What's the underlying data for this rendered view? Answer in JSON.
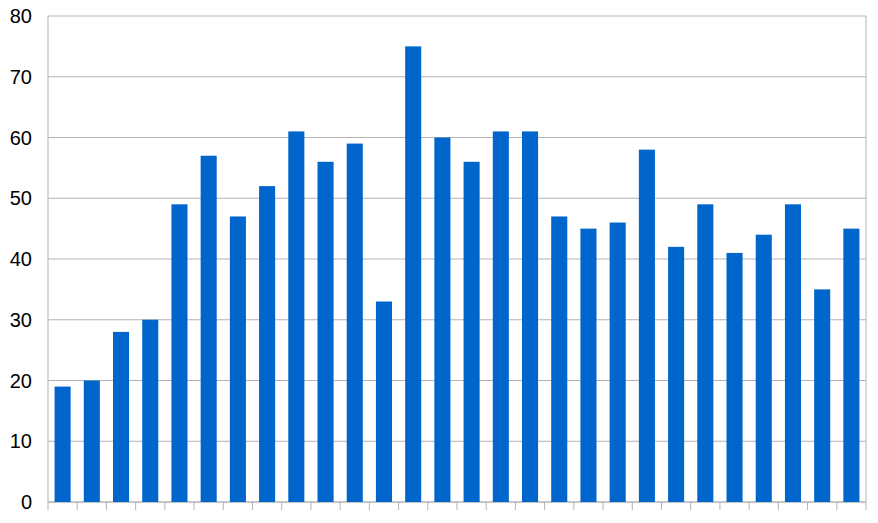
{
  "chart_data": {
    "type": "bar",
    "categories": [
      null,
      null,
      null,
      null,
      null,
      null,
      null,
      null,
      null,
      null,
      null,
      null,
      null,
      null,
      null,
      null,
      null,
      null,
      null,
      null,
      null,
      null,
      null,
      null,
      null,
      null,
      null,
      null
    ],
    "values": [
      19,
      20,
      28,
      30,
      49,
      57,
      47,
      52,
      61,
      56,
      59,
      33,
      75,
      60,
      56,
      61,
      61,
      47,
      45,
      46,
      58,
      42,
      49,
      41,
      44,
      49,
      35,
      45
    ],
    "color": "#0066cc",
    "ylim": [
      0,
      80
    ],
    "yticks": [
      0,
      10,
      20,
      30,
      40,
      50,
      60,
      70,
      80
    ],
    "grid": true
  }
}
